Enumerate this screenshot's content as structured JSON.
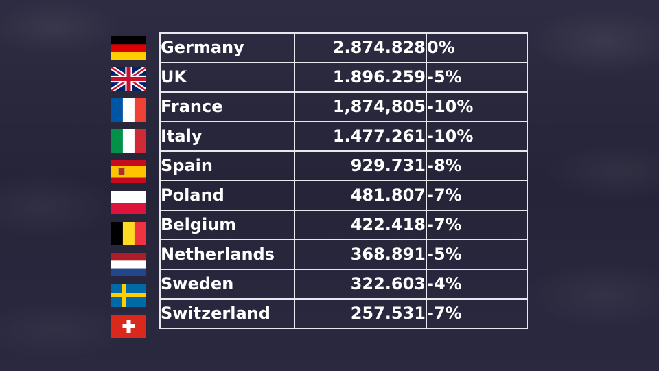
{
  "rows": [
    {
      "country": "Germany",
      "value": "2.874.828",
      "change": "0%",
      "flag": "germany-flag-icon"
    },
    {
      "country": "UK",
      "value": "1.896.259",
      "change": "-5%",
      "flag": "uk-flag-icon"
    },
    {
      "country": "France",
      "value": "1,874,805",
      "change": "-10%",
      "flag": "france-flag-icon"
    },
    {
      "country": "Italy",
      "value": "1.477.261",
      "change": "-10%",
      "flag": "italy-flag-icon"
    },
    {
      "country": "Spain",
      "value": "929.731",
      "change": "-8%",
      "flag": "spain-flag-icon"
    },
    {
      "country": "Poland",
      "value": "481.807",
      "change": "-7%",
      "flag": "poland-flag-icon"
    },
    {
      "country": "Belgium",
      "value": "422.418",
      "change": "-7%",
      "flag": "belgium-flag-icon"
    },
    {
      "country": "Netherlands",
      "value": "368.891",
      "change": "-5%",
      "flag": "netherlands-flag-icon"
    },
    {
      "country": "Sweden",
      "value": "322.603",
      "change": "-4%",
      "flag": "sweden-flag-icon"
    },
    {
      "country": "Switzerland",
      "value": "257.531",
      "change": "-7%",
      "flag": "switzerland-flag-icon"
    }
  ]
}
